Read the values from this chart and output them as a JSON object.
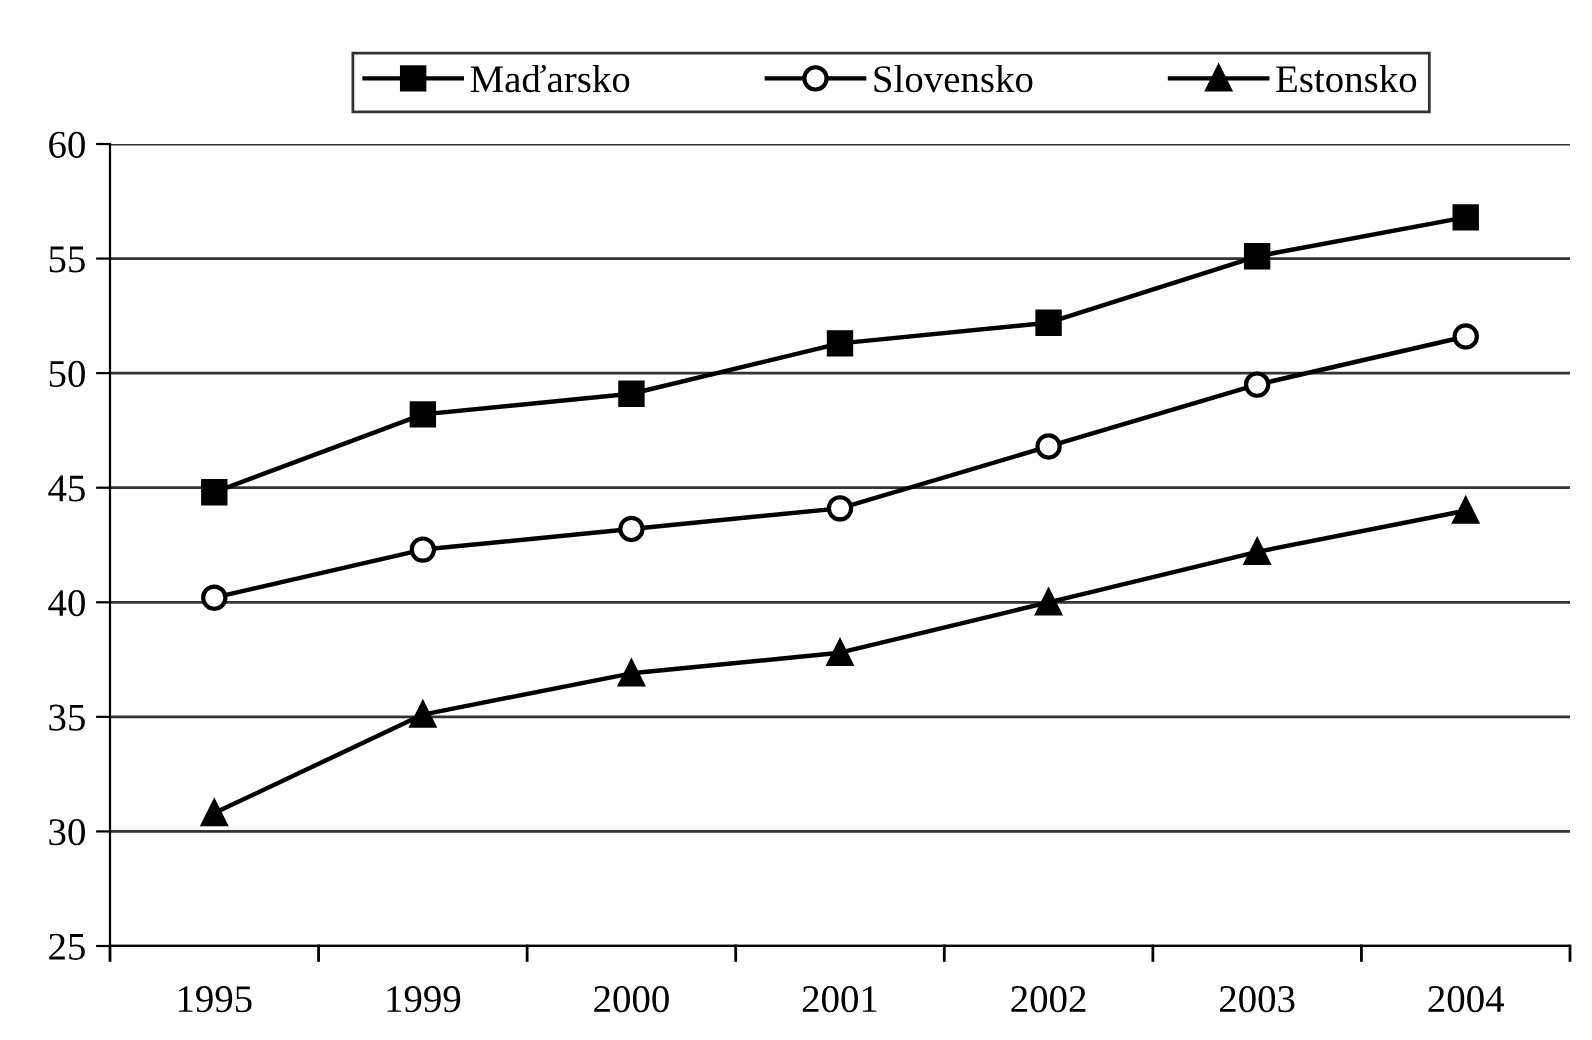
{
  "chart_data": {
    "type": "line",
    "categories": [
      "1995",
      "1999",
      "2000",
      "2001",
      "2002",
      "2003",
      "2004"
    ],
    "series": [
      {
        "name": "Maďarsko",
        "color": "#000000",
        "marker": "square",
        "values": [
          44.8,
          48.2,
          49.1,
          51.3,
          52.2,
          55.1,
          56.8
        ]
      },
      {
        "name": "Slovensko",
        "color": "#000000",
        "marker": "circle",
        "values": [
          40.2,
          42.3,
          43.2,
          44.1,
          46.8,
          49.5,
          51.6
        ]
      },
      {
        "name": "Estonsko",
        "color": "#000000",
        "marker": "triangle",
        "values": [
          30.8,
          35.1,
          36.9,
          37.8,
          40.0,
          42.2,
          44.0
        ]
      }
    ],
    "ylim": [
      25,
      60
    ],
    "yticks": [
      25,
      30,
      35,
      40,
      45,
      50,
      55,
      60
    ],
    "grid": "y",
    "legend": "top",
    "line_style": "solid"
  }
}
